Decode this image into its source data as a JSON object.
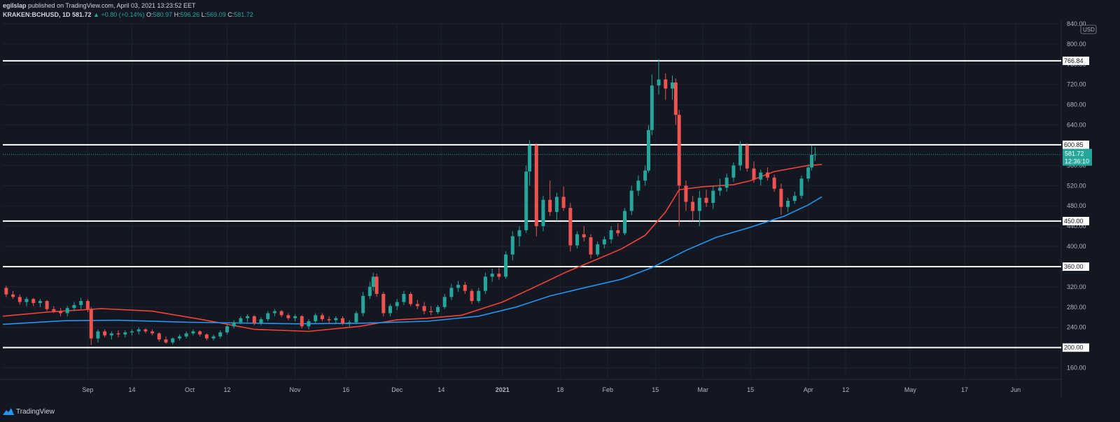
{
  "header": {
    "publisher": "egilslap",
    "published_text": "published on TradingView.com, April 03, 2021 13:23:52 EET",
    "symbol": "KRAKEN:BCHUSD, 1D",
    "last": "581.72",
    "change": "▲ +0.80 (+0.14%)",
    "o_label": "O:",
    "o": "580.97",
    "h_label": "H:",
    "h": "596.26",
    "l_label": "L:",
    "l": "569.09",
    "c_label": "C:",
    "c": "581.72"
  },
  "footer": {
    "brand": "TradingView"
  },
  "colors": {
    "background": "#131722",
    "up": "#26a69a",
    "down": "#ef5350",
    "ma_fast": "#f44336",
    "ma_slow": "#2196f3",
    "grid": "#1f2433",
    "level_line": "#ffffff"
  },
  "chart_data": {
    "type": "candlestick",
    "currency_label": "USD",
    "ylim": [
      140,
      840
    ],
    "y_ticks": [
      160,
      200,
      240,
      280,
      320,
      360,
      400,
      440,
      480,
      520,
      560,
      600,
      640,
      680,
      720,
      760,
      800,
      840
    ],
    "x_ticks": [
      {
        "date": "2020-09-01",
        "label": "Sep"
      },
      {
        "date": "2020-09-14",
        "label": "14"
      },
      {
        "date": "2020-10-01",
        "label": "Oct"
      },
      {
        "date": "2020-10-12",
        "label": "12"
      },
      {
        "date": "2020-11-01",
        "label": "Nov"
      },
      {
        "date": "2020-11-16",
        "label": "16"
      },
      {
        "date": "2020-12-01",
        "label": "Dec"
      },
      {
        "date": "2020-12-14",
        "label": "14"
      },
      {
        "date": "2021-01-01",
        "label": "2021"
      },
      {
        "date": "2021-01-18",
        "label": "18"
      },
      {
        "date": "2021-02-01",
        "label": "Feb"
      },
      {
        "date": "2021-02-15",
        "label": "15"
      },
      {
        "date": "2021-03-01",
        "label": "Mar"
      },
      {
        "date": "2021-03-15",
        "label": "15"
      },
      {
        "date": "2021-04-01",
        "label": "Apr"
      },
      {
        "date": "2021-04-12",
        "label": "12"
      },
      {
        "date": "2021-05-01",
        "label": "May"
      },
      {
        "date": "2021-05-17",
        "label": "17"
      },
      {
        "date": "2021-06-01",
        "label": "Jun"
      }
    ],
    "date_range": [
      "2020-08-07",
      "2021-06-14"
    ],
    "horizontal_levels": [
      {
        "value": 766.84,
        "label": "766.84"
      },
      {
        "value": 600.85,
        "label": "600.85"
      },
      {
        "value": 450.0,
        "label": "450.00"
      },
      {
        "value": 360.0,
        "label": "360.00"
      },
      {
        "value": 200.0,
        "label": "200.00"
      }
    ],
    "last_price": {
      "value": 581.72,
      "label": "581.72",
      "countdown": "12:36:10"
    },
    "moving_averages": [
      {
        "color": "#f44336",
        "points": [
          [
            "2020-08-07",
            262
          ],
          [
            "2020-08-20",
            270
          ],
          [
            "2020-09-05",
            277
          ],
          [
            "2020-09-20",
            272
          ],
          [
            "2020-10-05",
            255
          ],
          [
            "2020-10-20",
            236
          ],
          [
            "2020-11-05",
            232
          ],
          [
            "2020-11-20",
            242
          ],
          [
            "2020-12-01",
            255
          ],
          [
            "2020-12-10",
            258
          ],
          [
            "2020-12-20",
            264
          ],
          [
            "2021-01-01",
            290
          ],
          [
            "2021-01-10",
            318
          ],
          [
            "2021-01-20",
            350
          ],
          [
            "2021-01-28",
            372
          ],
          [
            "2021-02-05",
            395
          ],
          [
            "2021-02-12",
            422
          ],
          [
            "2021-02-18",
            468
          ],
          [
            "2021-02-22",
            512
          ],
          [
            "2021-03-01",
            518
          ],
          [
            "2021-03-10",
            522
          ],
          [
            "2021-03-15",
            530
          ],
          [
            "2021-03-22",
            548
          ],
          [
            "2021-04-01",
            560
          ],
          [
            "2021-04-05",
            562
          ]
        ]
      },
      {
        "color": "#2196f3",
        "points": [
          [
            "2020-08-07",
            246
          ],
          [
            "2020-08-25",
            253
          ],
          [
            "2020-09-10",
            254
          ],
          [
            "2020-10-01",
            250
          ],
          [
            "2020-11-01",
            247
          ],
          [
            "2020-11-20",
            248
          ],
          [
            "2020-12-10",
            252
          ],
          [
            "2020-12-25",
            262
          ],
          [
            "2021-01-05",
            280
          ],
          [
            "2021-01-15",
            302
          ],
          [
            "2021-01-25",
            318
          ],
          [
            "2021-02-05",
            335
          ],
          [
            "2021-02-14",
            358
          ],
          [
            "2021-02-24",
            392
          ],
          [
            "2021-03-05",
            418
          ],
          [
            "2021-03-15",
            438
          ],
          [
            "2021-03-25",
            460
          ],
          [
            "2021-04-01",
            482
          ],
          [
            "2021-04-05",
            498
          ]
        ]
      }
    ],
    "ohlc": [
      [
        "2020-08-08",
        318,
        322,
        300,
        305
      ],
      [
        "2020-08-10",
        305,
        312,
        296,
        300
      ],
      [
        "2020-08-12",
        300,
        305,
        285,
        290
      ],
      [
        "2020-08-14",
        290,
        300,
        282,
        296
      ],
      [
        "2020-08-16",
        296,
        298,
        282,
        288
      ],
      [
        "2020-08-18",
        288,
        296,
        280,
        292
      ],
      [
        "2020-08-20",
        292,
        294,
        272,
        276
      ],
      [
        "2020-08-22",
        276,
        282,
        268,
        272
      ],
      [
        "2020-08-24",
        272,
        278,
        262,
        268
      ],
      [
        "2020-08-26",
        268,
        282,
        262,
        278
      ],
      [
        "2020-08-28",
        278,
        290,
        272,
        284
      ],
      [
        "2020-08-30",
        284,
        298,
        276,
        292
      ],
      [
        "2020-09-01",
        292,
        296,
        270,
        276
      ],
      [
        "2020-09-02",
        276,
        280,
        205,
        218
      ],
      [
        "2020-09-04",
        218,
        236,
        210,
        232
      ],
      [
        "2020-09-06",
        232,
        236,
        220,
        224
      ],
      [
        "2020-09-08",
        224,
        232,
        216,
        228
      ],
      [
        "2020-09-10",
        228,
        234,
        220,
        226
      ],
      [
        "2020-09-12",
        226,
        234,
        220,
        230
      ],
      [
        "2020-09-14",
        230,
        236,
        224,
        232
      ],
      [
        "2020-09-16",
        232,
        240,
        226,
        236
      ],
      [
        "2020-09-18",
        236,
        238,
        228,
        232
      ],
      [
        "2020-09-20",
        232,
        236,
        224,
        228
      ],
      [
        "2020-09-22",
        228,
        230,
        212,
        216
      ],
      [
        "2020-09-24",
        216,
        222,
        208,
        210
      ],
      [
        "2020-09-26",
        210,
        220,
        206,
        218
      ],
      [
        "2020-09-28",
        218,
        226,
        214,
        222
      ],
      [
        "2020-09-30",
        222,
        232,
        218,
        228
      ],
      [
        "2020-10-02",
        228,
        236,
        224,
        232
      ],
      [
        "2020-10-04",
        232,
        234,
        222,
        226
      ],
      [
        "2020-10-06",
        226,
        228,
        214,
        218
      ],
      [
        "2020-10-08",
        218,
        226,
        214,
        222
      ],
      [
        "2020-10-10",
        222,
        234,
        218,
        230
      ],
      [
        "2020-10-12",
        230,
        246,
        226,
        242
      ],
      [
        "2020-10-14",
        242,
        254,
        238,
        250
      ],
      [
        "2020-10-16",
        250,
        262,
        246,
        258
      ],
      [
        "2020-10-18",
        258,
        266,
        250,
        262
      ],
      [
        "2020-10-20",
        262,
        264,
        244,
        248
      ],
      [
        "2020-10-22",
        248,
        260,
        244,
        256
      ],
      [
        "2020-10-24",
        256,
        272,
        252,
        268
      ],
      [
        "2020-10-26",
        268,
        276,
        262,
        272
      ],
      [
        "2020-10-28",
        272,
        274,
        260,
        264
      ],
      [
        "2020-10-30",
        264,
        268,
        254,
        258
      ],
      [
        "2020-11-01",
        258,
        266,
        252,
        262
      ],
      [
        "2020-11-03",
        262,
        264,
        238,
        242
      ],
      [
        "2020-11-05",
        242,
        256,
        236,
        252
      ],
      [
        "2020-11-07",
        252,
        268,
        248,
        264
      ],
      [
        "2020-11-09",
        264,
        268,
        252,
        256
      ],
      [
        "2020-11-11",
        256,
        262,
        248,
        254
      ],
      [
        "2020-11-13",
        254,
        262,
        248,
        258
      ],
      [
        "2020-11-15",
        258,
        262,
        244,
        248
      ],
      [
        "2020-11-17",
        248,
        254,
        240,
        250
      ],
      [
        "2020-11-19",
        250,
        272,
        246,
        268
      ],
      [
        "2020-11-21",
        268,
        310,
        262,
        302
      ],
      [
        "2020-11-23",
        302,
        330,
        296,
        320
      ],
      [
        "2020-11-24",
        320,
        348,
        312,
        340
      ],
      [
        "2020-11-25",
        340,
        346,
        300,
        306
      ],
      [
        "2020-11-27",
        306,
        310,
        262,
        268
      ],
      [
        "2020-11-29",
        268,
        286,
        262,
        282
      ],
      [
        "2020-12-01",
        282,
        296,
        274,
        290
      ],
      [
        "2020-12-03",
        290,
        312,
        284,
        306
      ],
      [
        "2020-12-05",
        306,
        310,
        282,
        286
      ],
      [
        "2020-12-07",
        286,
        294,
        276,
        282
      ],
      [
        "2020-12-09",
        282,
        290,
        266,
        272
      ],
      [
        "2020-12-11",
        272,
        282,
        264,
        270
      ],
      [
        "2020-12-13",
        270,
        284,
        266,
        280
      ],
      [
        "2020-12-15",
        280,
        306,
        276,
        300
      ],
      [
        "2020-12-17",
        300,
        326,
        294,
        318
      ],
      [
        "2020-12-19",
        318,
        332,
        310,
        324
      ],
      [
        "2020-12-21",
        324,
        330,
        306,
        312
      ],
      [
        "2020-12-23",
        312,
        316,
        286,
        292
      ],
      [
        "2020-12-25",
        292,
        318,
        288,
        312
      ],
      [
        "2020-12-27",
        312,
        348,
        306,
        340
      ],
      [
        "2020-12-29",
        340,
        356,
        330,
        346
      ],
      [
        "2020-12-31",
        346,
        358,
        334,
        340
      ],
      [
        "2021-01-02",
        340,
        390,
        336,
        384
      ],
      [
        "2021-01-04",
        384,
        430,
        372,
        420
      ],
      [
        "2021-01-06",
        420,
        440,
        400,
        432
      ],
      [
        "2021-01-08",
        432,
        560,
        426,
        548
      ],
      [
        "2021-01-09",
        548,
        610,
        520,
        600
      ],
      [
        "2021-01-11",
        600,
        604,
        420,
        440
      ],
      [
        "2021-01-13",
        440,
        500,
        430,
        492
      ],
      [
        "2021-01-15",
        492,
        530,
        460,
        468
      ],
      [
        "2021-01-17",
        468,
        506,
        452,
        498
      ],
      [
        "2021-01-19",
        498,
        518,
        470,
        476
      ],
      [
        "2021-01-21",
        476,
        486,
        390,
        402
      ],
      [
        "2021-01-23",
        402,
        430,
        396,
        424
      ],
      [
        "2021-01-25",
        424,
        440,
        410,
        418
      ],
      [
        "2021-01-27",
        418,
        424,
        376,
        384
      ],
      [
        "2021-01-29",
        384,
        410,
        380,
        404
      ],
      [
        "2021-01-31",
        404,
        420,
        396,
        414
      ],
      [
        "2021-02-02",
        414,
        440,
        406,
        432
      ],
      [
        "2021-02-04",
        432,
        446,
        420,
        426
      ],
      [
        "2021-02-06",
        426,
        476,
        422,
        470
      ],
      [
        "2021-02-08",
        470,
        520,
        462,
        510
      ],
      [
        "2021-02-10",
        510,
        540,
        500,
        530
      ],
      [
        "2021-02-12",
        530,
        560,
        520,
        550
      ],
      [
        "2021-02-13",
        550,
        640,
        546,
        630
      ],
      [
        "2021-02-14",
        630,
        740,
        620,
        718
      ],
      [
        "2021-02-16",
        718,
        770,
        700,
        730
      ],
      [
        "2021-02-18",
        730,
        742,
        690,
        712
      ],
      [
        "2021-02-20",
        712,
        738,
        690,
        724
      ],
      [
        "2021-02-21",
        724,
        732,
        640,
        660
      ],
      [
        "2021-02-22",
        660,
        670,
        440,
        520
      ],
      [
        "2021-02-24",
        520,
        530,
        470,
        488
      ],
      [
        "2021-02-26",
        488,
        500,
        452,
        470
      ],
      [
        "2021-02-28",
        470,
        510,
        440,
        496
      ],
      [
        "2021-03-02",
        496,
        512,
        478,
        486
      ],
      [
        "2021-03-04",
        486,
        520,
        474,
        510
      ],
      [
        "2021-03-06",
        510,
        534,
        500,
        516
      ],
      [
        "2021-03-08",
        516,
        544,
        508,
        536
      ],
      [
        "2021-03-10",
        536,
        566,
        528,
        560
      ],
      [
        "2021-03-12",
        560,
        608,
        550,
        600
      ],
      [
        "2021-03-14",
        600,
        604,
        548,
        554
      ],
      [
        "2021-03-16",
        554,
        568,
        526,
        532
      ],
      [
        "2021-03-18",
        532,
        552,
        520,
        546
      ],
      [
        "2021-03-20",
        546,
        556,
        530,
        536
      ],
      [
        "2021-03-22",
        536,
        542,
        508,
        514
      ],
      [
        "2021-03-24",
        514,
        524,
        462,
        478
      ],
      [
        "2021-03-26",
        478,
        496,
        468,
        490
      ],
      [
        "2021-03-28",
        490,
        508,
        484,
        500
      ],
      [
        "2021-03-30",
        500,
        540,
        494,
        534
      ],
      [
        "2021-04-01",
        534,
        562,
        528,
        556
      ],
      [
        "2021-04-02",
        556,
        600,
        550,
        581
      ],
      [
        "2021-04-03",
        581,
        596,
        569,
        582
      ]
    ]
  }
}
